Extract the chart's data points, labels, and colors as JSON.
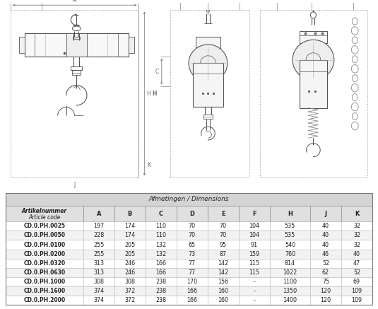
{
  "title": "Afmetingen / Dimensions",
  "header1": "Artikelnummer",
  "header2": "Article code",
  "col_headers": [
    "A",
    "B",
    "C",
    "D",
    "E",
    "F",
    "H",
    "J",
    "K"
  ],
  "rows": [
    [
      "CD.0.PH.0025",
      "197",
      "174",
      "110",
      "70",
      "70",
      "104",
      "535",
      "40",
      "32"
    ],
    [
      "CD.0.PH.0050",
      "228",
      "174",
      "110",
      "70",
      "70",
      "104",
      "535",
      "40",
      "32"
    ],
    [
      "CD.0.PH.0100",
      "255",
      "205",
      "132",
      "65",
      "95",
      "91",
      "540",
      "40",
      "32"
    ],
    [
      "CD.0.PH.0200",
      "255",
      "205",
      "132",
      "73",
      "87",
      "159",
      "760",
      "46",
      "40"
    ],
    [
      "CD.0.PH.0320",
      "313",
      "246",
      "166",
      "77",
      "142",
      "115",
      "814",
      "52",
      "47"
    ],
    [
      "CD.0.PH.0630",
      "313",
      "246",
      "166",
      "77",
      "142",
      "115",
      "1022",
      "62",
      "52"
    ],
    [
      "CD.0.PH.1000",
      "308",
      "308",
      "238",
      "170",
      "156",
      "-",
      "1100",
      "75",
      "69"
    ],
    [
      "CD.0.PH.1600",
      "374",
      "372",
      "238",
      "166",
      "160",
      "-",
      "1350",
      "120",
      "109"
    ],
    [
      "CD.0.PH.2000",
      "374",
      "372",
      "238",
      "166",
      "160",
      "-",
      "1400",
      "120",
      "109"
    ]
  ],
  "table_header_bg": "#d4d4d4",
  "table_col_header_bg": "#e0e0e0",
  "table_row_bg_white": "#ffffff",
  "table_row_bg_gray": "#f2f2f2",
  "bg_color": "#ffffff",
  "line_color": "#555555",
  "dim_color": "#666666",
  "text_color": "#222222",
  "gray_line": "#aaaaaa",
  "font_size_title": 6.5,
  "font_size_header": 6.0,
  "font_size_data": 5.5,
  "font_size_dim": 5.5
}
